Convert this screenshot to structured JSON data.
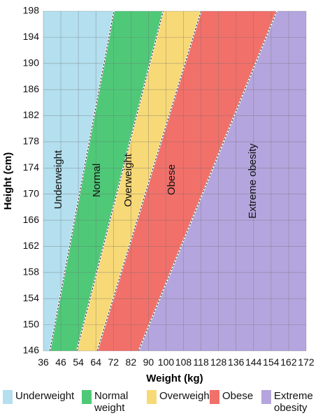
{
  "chart_data": {
    "type": "area",
    "xlabel": "Weight (kg)",
    "ylabel": "Height (cm)",
    "xlim": [
      36,
      172
    ],
    "ylim": [
      146,
      198
    ],
    "x_ticks": [
      "36",
      "46",
      "54",
      "64",
      "72",
      "82",
      "90",
      "100",
      "108",
      "118",
      "128",
      "136",
      "144",
      "154",
      "162",
      "172"
    ],
    "y_ticks": [
      146,
      150,
      154,
      158,
      162,
      166,
      170,
      174,
      178,
      182,
      186,
      190,
      194,
      198
    ],
    "grid": true,
    "categories": [
      {
        "name": "Underweight",
        "color": "#b3dfef",
        "bmi_upper": 18.5
      },
      {
        "name": "Normal weight",
        "color": "#4fc978",
        "bmi_upper": 25
      },
      {
        "name": "Overweight",
        "color": "#f7d977",
        "bmi_upper": 30
      },
      {
        "name": "Obese",
        "color": "#f2706a",
        "bmi_upper": 40
      },
      {
        "name": "Extreme obesity",
        "color": "#b5a5de",
        "bmi_upper": null
      }
    ],
    "boundaries": [
      {
        "between": [
          "Underweight",
          "Normal weight"
        ],
        "bmi": 18.5,
        "points": [
          {
            "height": 146,
            "weight": 39.4
          },
          {
            "height": 198,
            "weight": 72.5
          }
        ]
      },
      {
        "between": [
          "Normal weight",
          "Overweight"
        ],
        "bmi": 25,
        "points": [
          {
            "height": 146,
            "weight": 53.3
          },
          {
            "height": 198,
            "weight": 98.0
          }
        ]
      },
      {
        "between": [
          "Overweight",
          "Obese"
        ],
        "bmi": 30,
        "points": [
          {
            "height": 146,
            "weight": 63.9
          },
          {
            "height": 198,
            "weight": 117.6
          }
        ]
      },
      {
        "between": [
          "Obese",
          "Extreme obesity"
        ],
        "bmi": 40,
        "points": [
          {
            "height": 146,
            "weight": 85.3
          },
          {
            "height": 198,
            "weight": 156.8
          }
        ]
      }
    ],
    "zone_labels": [
      "Underweight",
      "Normal",
      "Overweight",
      "Obese",
      "Extreme obesity"
    ],
    "legend": {
      "placement": "bottom",
      "items": [
        {
          "lines": [
            "Underweight"
          ],
          "color": "#b3dfef"
        },
        {
          "lines": [
            "Normal",
            "weight"
          ],
          "color": "#4fc978"
        },
        {
          "lines": [
            "Overweight"
          ],
          "color": "#f7d977"
        },
        {
          "lines": [
            "Obese"
          ],
          "color": "#f2706a"
        },
        {
          "lines": [
            "Extreme",
            "obesity"
          ],
          "color": "#b5a5de"
        }
      ]
    }
  }
}
